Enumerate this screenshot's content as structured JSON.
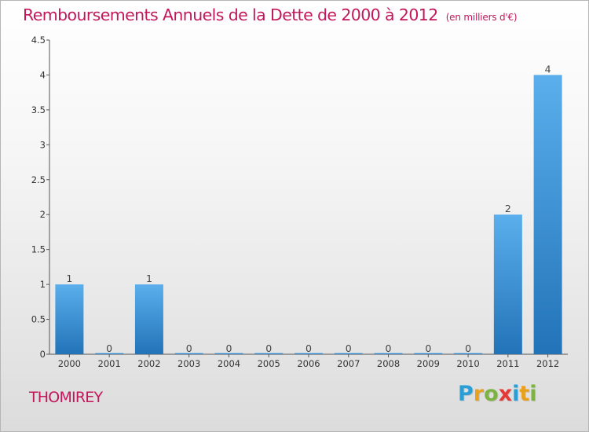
{
  "title": "Remboursements Annuels de la Dette de 2000 à 2012",
  "unit": "(en milliers d'€)",
  "commune": "THOMIREY",
  "logo": {
    "letters": [
      "P",
      "r",
      "o",
      "x",
      "i",
      "t",
      "i"
    ],
    "colors": [
      "#2a9fd6",
      "#e9a11d",
      "#7cb342",
      "#e53935",
      "#2a9fd6",
      "#e9a11d",
      "#7cb342"
    ]
  },
  "colors": {
    "bar": "#3a8fd4",
    "title": "#c2185b"
  },
  "chart_data": {
    "type": "bar",
    "title": "Remboursements Annuels de la Dette de 2000 à 2012",
    "xlabel": "",
    "ylabel": "",
    "categories": [
      "2000",
      "2001",
      "2002",
      "2003",
      "2004",
      "2005",
      "2006",
      "2007",
      "2008",
      "2009",
      "2010",
      "2011",
      "2012"
    ],
    "values": [
      1,
      0,
      1,
      0,
      0,
      0,
      0,
      0,
      0,
      0,
      0,
      2,
      4
    ],
    "data_labels": [
      "1",
      "0",
      "1",
      "0",
      "0",
      "0",
      "0",
      "0",
      "0",
      "0",
      "0",
      "2",
      "4"
    ],
    "ylim": [
      0,
      4.5
    ],
    "yticks": [
      0,
      0.5,
      1,
      1.5,
      2,
      2.5,
      3,
      3.5,
      4,
      4.5
    ],
    "ytick_labels": [
      "0",
      "0.5",
      "1",
      "1.5",
      "2",
      "2.5",
      "3",
      "3.5",
      "4",
      "4.5"
    ],
    "grid": false,
    "legend": "none"
  }
}
